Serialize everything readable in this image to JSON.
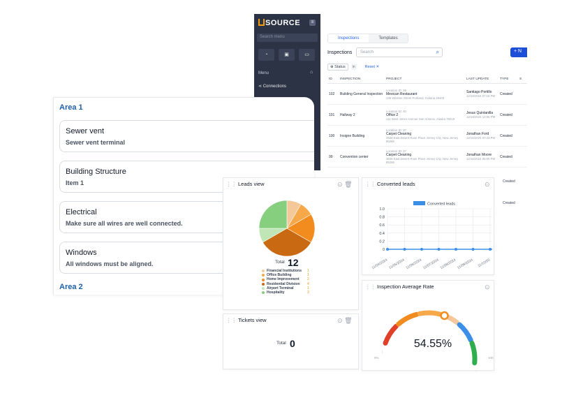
{
  "app": {
    "logo": "SOURCE",
    "sidebar_search_placeholder": "Search menu",
    "menu_label": "Menu",
    "connections_label": "Connections",
    "tabs": [
      "Inspections",
      "Templates"
    ],
    "inspections_title": "Inspections",
    "search_placeholder": "Search",
    "new_button": "+ N",
    "filter_status": "Status",
    "filter_in": "in",
    "reset_label": "Reset",
    "columns": [
      "ID",
      "INSPECTION",
      "PROJECT",
      "LAST UPDATE",
      "TYPE",
      "S"
    ],
    "rows": [
      {
        "id": "102",
        "inspection": "Building General Inspection",
        "location": "Location ID: 39",
        "project": "Mexican Restaurant",
        "address": "136 Wilshire Street Portland, Indiana 39403",
        "updated_by": "Santiago Portillo",
        "updated_at": "12/18/2024 07:15 PM",
        "type": "Created"
      },
      {
        "id": "101",
        "inspection": "Hallway 2",
        "location": "Location ID: 40",
        "project": "Office 2",
        "address": "111 West Jones Avenue San Antonio, Alaska 78219",
        "updated_by": "Jesus Quintanilla",
        "updated_at": "12/18/2024 12:06 PM",
        "type": "Created"
      },
      {
        "id": "100",
        "inspection": "Insigne Building",
        "location": "Location ID: 37",
        "project": "Carpet Cleaning",
        "address": "3938 East Desert Rose Place Jersey City, New Jersey 85286",
        "updated_by": "Jonathan Ford",
        "updated_at": "12/16/2024 07:43 PM",
        "type": "Created"
      },
      {
        "id": "99",
        "inspection": "Convention center",
        "location": "Location ID: 37",
        "project": "Carpet Cleaning",
        "address": "3938 East Desert Rose Place Jersey City, New Jersey 85286",
        "updated_by": "Jonathan Moore",
        "updated_at": "12/16/2024 06:00 PM",
        "type": "Created"
      }
    ],
    "extra_types": [
      "Created",
      "Created"
    ]
  },
  "areas": {
    "area1": "Area 1",
    "area2": "Area 2",
    "items": [
      {
        "title": "Sewer vent",
        "subtitle": "Sewer vent terminal"
      },
      {
        "title": "Building Structure",
        "subtitle": "Item 1"
      },
      {
        "title": "Electrical",
        "subtitle": "Make sure all wires are well connected."
      },
      {
        "title": "Windows",
        "subtitle": "All windows must be aligned."
      }
    ]
  },
  "leads_view": {
    "title": "Leads view",
    "total_label": "Total",
    "total_value": "12",
    "chart_data": {
      "type": "pie",
      "categories": [
        "Financial Institutions",
        "Office Building",
        "Home Improvement",
        "Residential Division",
        "Airport Terminal",
        "Hospitality"
      ],
      "values": [
        1,
        1,
        2,
        4,
        1,
        3
      ],
      "colors": [
        "#f5c89a",
        "#f7a94a",
        "#f28c1e",
        "#c96a12",
        "#bfe6b4",
        "#86cf7f"
      ]
    }
  },
  "converted_leads": {
    "title": "Converted leads",
    "chart_data": {
      "type": "line",
      "series": [
        {
          "name": "Converted leads",
          "values": [
            0,
            0,
            0,
            0,
            0,
            0,
            0
          ]
        }
      ],
      "x": [
        "11/04/2024",
        "11/05/2024",
        "11/06/2024",
        "11/07/2024",
        "11/08/2024",
        "11/09/2024",
        "11/10/20"
      ],
      "yticks": [
        "0",
        "0.2",
        "0.4",
        "0.6",
        "0.8",
        "1.0"
      ],
      "ylim": [
        0,
        1
      ]
    },
    "color": "#3b8fe6"
  },
  "tickets_view": {
    "title": "Tickets view",
    "total_label": "Total",
    "total_value": "0"
  },
  "inspection_rate": {
    "title": "Inspection Average Rate",
    "value": "54.55%",
    "value_fraction": 0.5455,
    "min_label": "0%",
    "max_label": "100"
  }
}
